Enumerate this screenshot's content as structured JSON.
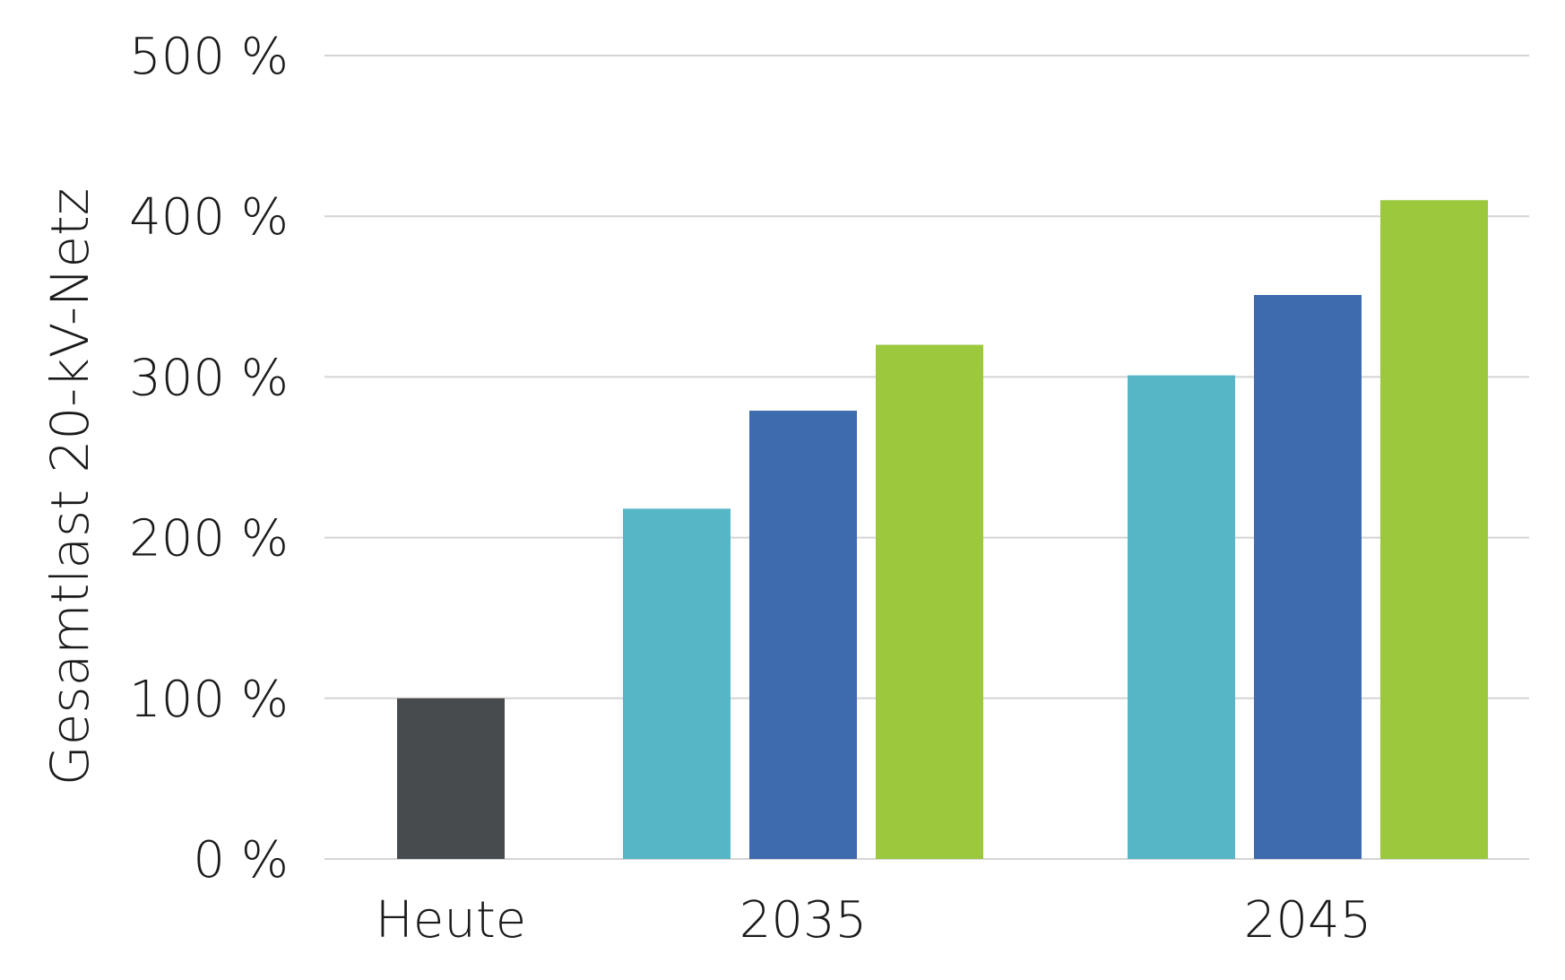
{
  "chart_data": {
    "type": "bar",
    "ylabel": "Gesamtlast 20-kV-Netz",
    "xlabel": "",
    "ylim": [
      0,
      500
    ],
    "yticks": [
      0,
      100,
      200,
      300,
      400,
      500
    ],
    "ytick_labels": [
      "0 %",
      "100 %",
      "200 %",
      "300 %",
      "400 %",
      "500 %"
    ],
    "grid": true,
    "groups": [
      {
        "category": "Heute",
        "values": [
          100
        ],
        "colors": [
          "#474b4e"
        ]
      },
      {
        "category": "2035",
        "values": [
          218,
          279,
          320
        ],
        "colors": [
          "#55b6c6",
          "#3d6bad",
          "#9bc83d"
        ]
      },
      {
        "category": "2045",
        "values": [
          301,
          351,
          410
        ],
        "colors": [
          "#55b6c6",
          "#3d6bad",
          "#9bc83d"
        ]
      }
    ]
  }
}
